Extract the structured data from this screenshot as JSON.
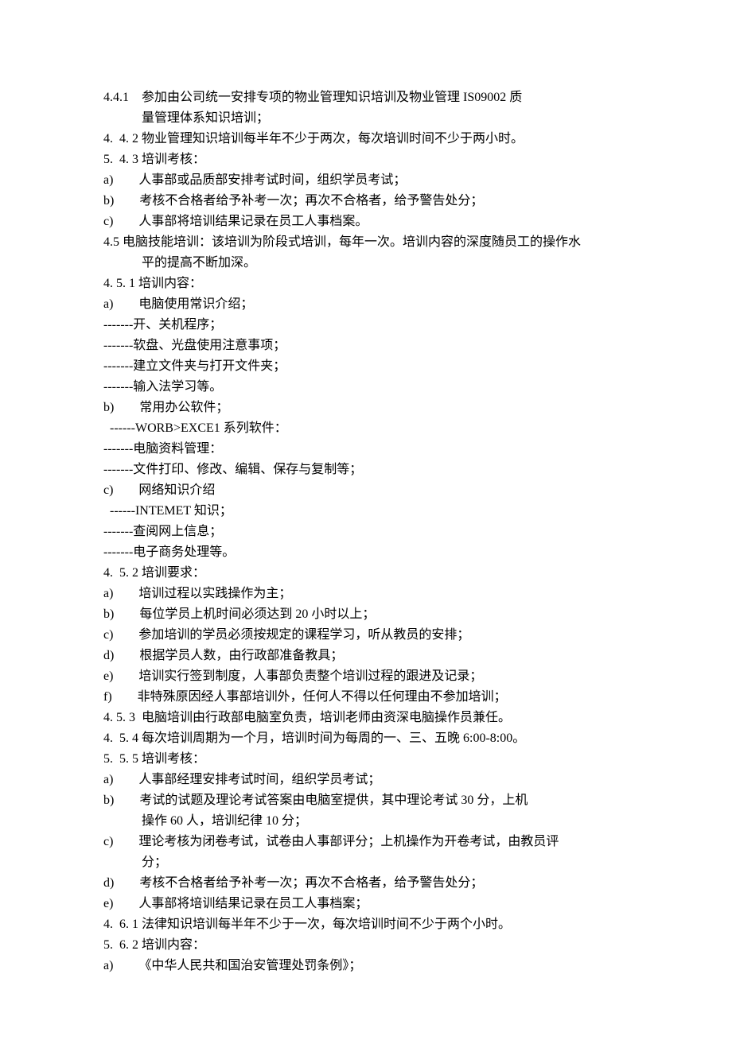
{
  "lines": [
    "4.4.1    参加由公司统一安排专项的物业管理知识培训及物业管理 IS09002 质",
    "            量管理体系知识培训；",
    "4.  4. 2 物业管理知识培训每半年不少于两次，每次培训时间不少于两小时。",
    "5.  4. 3 培训考核：",
    "a)        人事部或品质部安排考试时间，组织学员考试；",
    "b)        考核不合格者给予补考一次；再次不合格者，给予警告处分；",
    "c)        人事部将培训结果记录在员工人事档案。",
    "4.5 电脑技能培训：该培训为阶段式培训，每年一次。培训内容的深度随员工的操作水",
    "            平的提高不断加深。",
    "4. 5. 1 培训内容：",
    "a)        电脑使用常识介绍；",
    "-------开、关机程序；",
    "-------软盘、光盘使用注意事项；",
    "-------建立文件夹与打开文件夹；",
    "-------输入法学习等。",
    "b)        常用办公软件；",
    "  ------WORB>EXCE1 系列软件：",
    "-------电脑资料管理：",
    "-------文件打印、修改、编辑、保存与复制等；",
    "c)        网络知识介绍",
    "  ------INTEMET 知识；",
    "-------查阅网上信息；",
    "-------电子商务处理等。",
    "4.  5. 2 培训要求：",
    "a)        培训过程以实践操作为主；",
    "b)        每位学员上机时间必须达到 20 小时以上；",
    "c)        参加培训的学员必须按规定的课程学习，听从教员的安排；",
    "d)        根据学员人数，由行政部准备教具；",
    "e)        培训实行签到制度，人事部负责整个培训过程的跟进及记录；",
    "f)        非特殊原因经人事部培训外，任何人不得以任何理由不参加培训；",
    "4. 5. 3  电脑培训由行政部电脑室负责，培训老师由资深电脑操作员兼任。",
    "4.  5. 4 每次培训周期为一个月，培训时间为每周的一、三、五晚 6:00-8:00。",
    "5.  5. 5 培训考核：",
    "a)        人事部经理安排考试时间，组织学员考试；",
    "b)        考试的试题及理论考试答案由电脑室提供，其中理论考试 30 分，上机",
    "            操作 60 人，培训纪律 10 分；",
    "c)        理论考核为闭卷考试，试卷由人事部评分；上机操作为开卷考试，由教员评",
    "            分；",
    "d)        考核不合格者给予补考一次；再次不合格者，给予警告处分；",
    "e)        人事部将培训结果记录在员工人事档案；",
    "4.  6. 1 法律知识培训每半年不少于一次，每次培训时间不少于两个小时。",
    "5.  6. 2 培训内容：",
    "a)        《中华人民共和国治安管理处罚条例》；"
  ]
}
